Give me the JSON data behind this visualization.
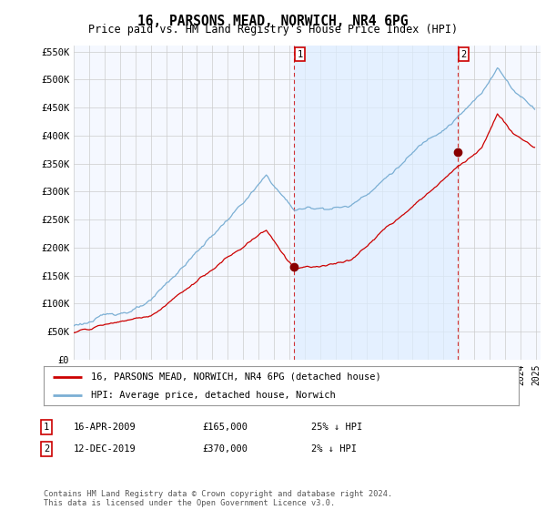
{
  "title": "16, PARSONS MEAD, NORWICH, NR4 6PG",
  "subtitle": "Price paid vs. HM Land Registry's House Price Index (HPI)",
  "ylabel_ticks": [
    "£0",
    "£50K",
    "£100K",
    "£150K",
    "£200K",
    "£250K",
    "£300K",
    "£350K",
    "£400K",
    "£450K",
    "£500K",
    "£550K"
  ],
  "ylim": [
    0,
    560000
  ],
  "yticks": [
    0,
    50000,
    100000,
    150000,
    200000,
    250000,
    300000,
    350000,
    400000,
    450000,
    500000,
    550000
  ],
  "xstart": 1995,
  "xend": 2025,
  "sale1_year": 2009.29,
  "sale1_price": 165000,
  "sale2_year": 2019.92,
  "sale2_price": 370000,
  "hpi_color": "#7bafd4",
  "hpi_fill_color": "#ddeeff",
  "price_color": "#cc0000",
  "marker_color": "#880000",
  "vline_color": "#cc0000",
  "grid_color": "#cccccc",
  "plot_bg_color": "#f5f8ff",
  "legend_label_red": "16, PARSONS MEAD, NORWICH, NR4 6PG (detached house)",
  "legend_label_blue": "HPI: Average price, detached house, Norwich",
  "annotation1_date": "16-APR-2009",
  "annotation1_price": "£165,000",
  "annotation1_hpi": "25% ↓ HPI",
  "annotation2_date": "12-DEC-2019",
  "annotation2_price": "£370,000",
  "annotation2_hpi": "2% ↓ HPI",
  "footnote": "Contains HM Land Registry data © Crown copyright and database right 2024.\nThis data is licensed under the Open Government Licence v3.0.",
  "background_color": "#ffffff"
}
